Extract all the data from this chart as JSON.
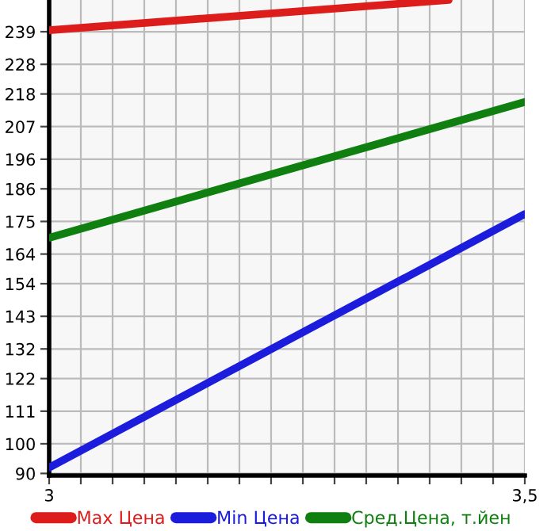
{
  "chart_data": {
    "type": "line",
    "series": [
      {
        "name": "Max Цена",
        "color": "#dd1c1c",
        "x": [
          3,
          3.42
        ],
        "values": [
          239.5,
          249.7
        ]
      },
      {
        "name": "Min Цена",
        "color": "#1c1cdd",
        "x": [
          3,
          3.5
        ],
        "values": [
          92.0,
          177.5
        ]
      },
      {
        "name": "Сред.Цена, т.йен",
        "color": "#0f7f0f",
        "x": [
          3,
          3.5
        ],
        "values": [
          169.5,
          215.3
        ]
      }
    ],
    "xlim": [
      3,
      3.5
    ],
    "xticks": [
      {
        "value": 3,
        "label": "3"
      },
      {
        "value": 3.0333,
        "label": null
      },
      {
        "value": 3.0667,
        "label": null
      },
      {
        "value": 3.1,
        "label": null
      },
      {
        "value": 3.1333,
        "label": null
      },
      {
        "value": 3.1667,
        "label": null
      },
      {
        "value": 3.2,
        "label": null
      },
      {
        "value": 3.2333,
        "label": null
      },
      {
        "value": 3.2667,
        "label": null
      },
      {
        "value": 3.3,
        "label": null
      },
      {
        "value": 3.3333,
        "label": null
      },
      {
        "value": 3.3667,
        "label": null
      },
      {
        "value": 3.4,
        "label": null
      },
      {
        "value": 3.4333,
        "label": null
      },
      {
        "value": 3.4667,
        "label": null
      },
      {
        "value": 3.5,
        "label": "3,5"
      }
    ],
    "ylim": [
      89.3,
      249.7
    ],
    "yticks": [
      90,
      100,
      111,
      122,
      132,
      143,
      154,
      164,
      175,
      186,
      196,
      207,
      218,
      228,
      239
    ],
    "grid": true,
    "legend": "bottom",
    "marker": "none",
    "line_style": "solid"
  }
}
